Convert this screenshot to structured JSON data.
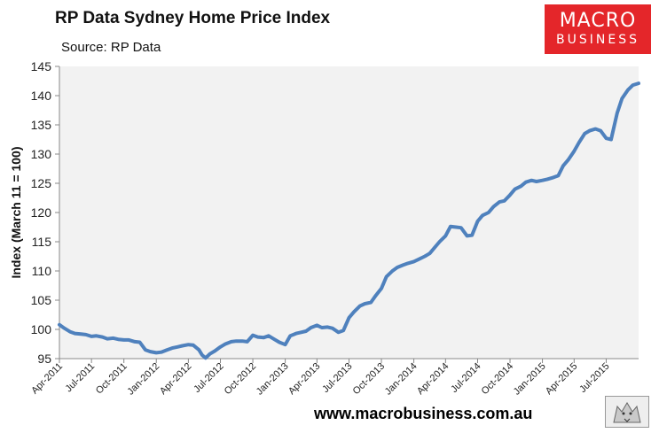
{
  "brand": {
    "logo_line1": "MACRO",
    "logo_line2": "BUSINESS",
    "url": "www.macrobusiness.com.au"
  },
  "colors": {
    "line": "#4f81bd",
    "plot_bg": "#f2f2f2",
    "logo_bg": "#e4262a"
  },
  "chart_data": {
    "type": "line",
    "title": "RP Data Sydney Home Price Index",
    "subtitle": "Source: RP Data",
    "xlabel": "",
    "ylabel": "Index (March 11 = 100)",
    "ylim": [
      95,
      145
    ],
    "yticks": [
      95,
      100,
      105,
      110,
      115,
      120,
      125,
      130,
      135,
      140,
      145
    ],
    "xlim": [
      "2011-04",
      "2015-10"
    ],
    "xticks": [
      "Apr-2011",
      "Jul-2011",
      "Oct-2011",
      "Jan-2012",
      "Apr-2012",
      "Jul-2012",
      "Oct-2012",
      "Jan-2013",
      "Apr-2013",
      "Jul-2013",
      "Oct-2013",
      "Jan-2014",
      "Apr-2014",
      "Jul-2014",
      "Oct-2014",
      "Jan-2015",
      "Apr-2015",
      "Jul-2015"
    ],
    "grid": false,
    "legend": "none",
    "series": [
      {
        "x": [
          "2011-04-01",
          "2011-04-15",
          "2011-05-01",
          "2011-05-15",
          "2011-06-01",
          "2011-06-15",
          "2011-07-01",
          "2011-07-15",
          "2011-08-01",
          "2011-08-15",
          "2011-09-01",
          "2011-09-15",
          "2011-10-01",
          "2011-10-15",
          "2011-11-01",
          "2011-11-15",
          "2011-12-01",
          "2011-12-15",
          "2012-01-01",
          "2012-01-15",
          "2012-02-01",
          "2012-02-15",
          "2012-03-01",
          "2012-03-15",
          "2012-04-01",
          "2012-04-15",
          "2012-05-01",
          "2012-05-10",
          "2012-05-20",
          "2012-06-01",
          "2012-06-15",
          "2012-07-01",
          "2012-07-15",
          "2012-08-01",
          "2012-08-15",
          "2012-09-01",
          "2012-09-15",
          "2012-10-01",
          "2012-10-15",
          "2012-11-01",
          "2012-11-15",
          "2012-12-01",
          "2012-12-15",
          "2013-01-01",
          "2013-01-15",
          "2013-02-01",
          "2013-02-15",
          "2013-03-01",
          "2013-03-15",
          "2013-04-01",
          "2013-04-15",
          "2013-05-01",
          "2013-05-15",
          "2013-06-01",
          "2013-06-15",
          "2013-07-01",
          "2013-07-15",
          "2013-08-01",
          "2013-08-15",
          "2013-09-01",
          "2013-09-15",
          "2013-10-01",
          "2013-10-15",
          "2013-11-01",
          "2013-11-15",
          "2013-12-01",
          "2013-12-15",
          "2014-01-01",
          "2014-01-15",
          "2014-02-01",
          "2014-02-15",
          "2014-03-01",
          "2014-03-15",
          "2014-04-01",
          "2014-04-15",
          "2014-05-01",
          "2014-05-15",
          "2014-06-01",
          "2014-06-15",
          "2014-07-01",
          "2014-07-15",
          "2014-08-01",
          "2014-08-15",
          "2014-09-01",
          "2014-09-15",
          "2014-10-01",
          "2014-10-15",
          "2014-11-01",
          "2014-11-15",
          "2014-12-01",
          "2014-12-15",
          "2015-01-01",
          "2015-01-15",
          "2015-02-01",
          "2015-02-15",
          "2015-03-01",
          "2015-03-15",
          "2015-04-01",
          "2015-04-15",
          "2015-05-01",
          "2015-05-15",
          "2015-06-01",
          "2015-06-15",
          "2015-07-01",
          "2015-07-15",
          "2015-08-01",
          "2015-08-15",
          "2015-09-01",
          "2015-09-15",
          "2015-10-01"
        ],
        "values": [
          100.8,
          100.2,
          99.6,
          99.3,
          99.2,
          99.1,
          98.8,
          98.9,
          98.7,
          98.4,
          98.5,
          98.3,
          98.2,
          98.2,
          97.9,
          97.8,
          96.5,
          96.2,
          96.0,
          96.1,
          96.5,
          96.8,
          97.0,
          97.2,
          97.4,
          97.3,
          96.5,
          95.6,
          95.1,
          95.8,
          96.3,
          97.0,
          97.5,
          97.9,
          98.0,
          98.0,
          97.9,
          99.0,
          98.7,
          98.6,
          98.9,
          98.3,
          97.8,
          97.4,
          98.9,
          99.3,
          99.5,
          99.7,
          100.3,
          100.7,
          100.3,
          100.4,
          100.2,
          99.5,
          99.8,
          102.0,
          103.0,
          104.0,
          104.4,
          104.6,
          105.8,
          107.0,
          109.0,
          110.0,
          110.6,
          111.0,
          111.3,
          111.6,
          112.0,
          112.5,
          113.0,
          114.0,
          115.0,
          116.0,
          117.6,
          117.5,
          117.4,
          116.0,
          116.1,
          118.5,
          119.5,
          120.0,
          121.0,
          121.8,
          122.0,
          123.0,
          124.0,
          124.5,
          125.2,
          125.5,
          125.3,
          125.5,
          125.7,
          126.0,
          126.3,
          128.0,
          129.0,
          130.5,
          132.0,
          133.5,
          134.0,
          134.3,
          134.0,
          132.7,
          132.5,
          137.0,
          139.5,
          141.0,
          141.8,
          142.1
        ]
      }
    ]
  }
}
